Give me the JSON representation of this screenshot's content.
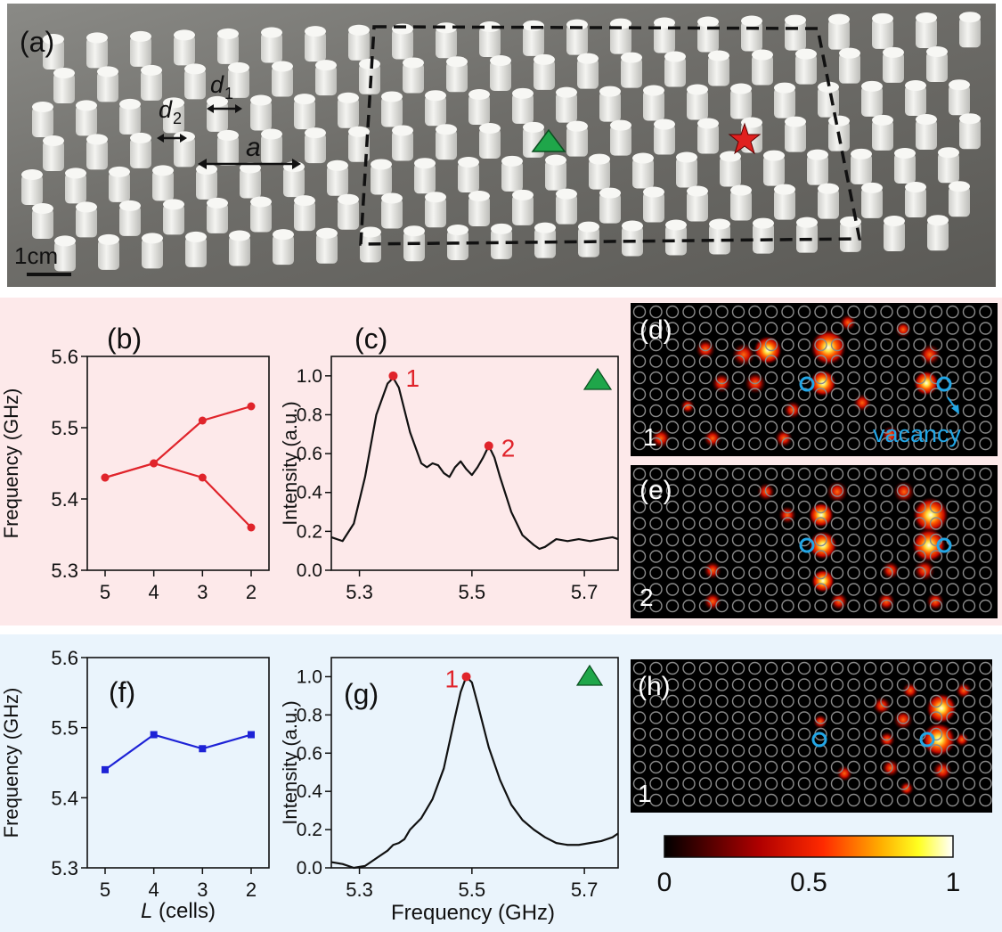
{
  "panels": {
    "a": {
      "label": "(a)",
      "annotations": {
        "d1_base": "d",
        "d1_sub": "1",
        "d2_base": "d",
        "d2_sub": "2",
        "a": "a"
      },
      "scale_bar": "1cm"
    },
    "b": {
      "label": "(b)"
    },
    "c": {
      "label": "(c)"
    },
    "d": {
      "label": "(d)",
      "mode": "1",
      "vacancy_label": "vacancy"
    },
    "e": {
      "label": "(e)",
      "mode": "2"
    },
    "f": {
      "label": "(f)"
    },
    "g": {
      "label": "(g)"
    },
    "h": {
      "label": "(h)",
      "mode": "1"
    }
  },
  "colors": {
    "top_background": "#fde9ea",
    "bottom_background": "#eaf4fc",
    "red_series": "#e0242b",
    "blue_series": "#1d22d6",
    "triangle": "#1fa64a",
    "star": "#e0201f",
    "vacancy": "#22a6e6"
  },
  "chart_data": [
    {
      "id": "b",
      "type": "line",
      "ylabel": "Frequency (GHz)",
      "xlabel": "",
      "categories": [
        "5",
        "4",
        "3",
        "2"
      ],
      "series": [
        {
          "values": [
            5.43,
            5.45,
            5.51,
            5.53
          ]
        },
        {
          "values": [
            5.43,
            5.45,
            5.43,
            5.36
          ]
        }
      ],
      "ylim": [
        5.3,
        5.6
      ],
      "yticks": [
        "5.3",
        "5.4",
        "5.5",
        "5.6"
      ]
    },
    {
      "id": "c",
      "type": "line",
      "ylabel": "Intensity (a.u.)",
      "xlabel": "",
      "xlim": [
        5.25,
        5.76
      ],
      "ylim": [
        0.0,
        1.1
      ],
      "xticks": [
        "5.3",
        "5.5",
        "5.7"
      ],
      "yticks": [
        "0.0",
        "0.2",
        "0.4",
        "0.6",
        "0.8",
        "1.0"
      ],
      "x": [
        5.25,
        5.27,
        5.29,
        5.31,
        5.33,
        5.35,
        5.36,
        5.37,
        5.39,
        5.41,
        5.42,
        5.43,
        5.44,
        5.45,
        5.46,
        5.47,
        5.48,
        5.49,
        5.5,
        5.51,
        5.52,
        5.53,
        5.54,
        5.55,
        5.57,
        5.59,
        5.61,
        5.62,
        5.63,
        5.65,
        5.67,
        5.69,
        5.71,
        5.73,
        5.75,
        5.76
      ],
      "y": [
        0.17,
        0.15,
        0.24,
        0.48,
        0.8,
        0.96,
        0.99,
        0.94,
        0.71,
        0.55,
        0.53,
        0.55,
        0.54,
        0.5,
        0.48,
        0.53,
        0.56,
        0.52,
        0.49,
        0.53,
        0.58,
        0.64,
        0.58,
        0.48,
        0.3,
        0.18,
        0.13,
        0.11,
        0.12,
        0.16,
        0.15,
        0.16,
        0.15,
        0.16,
        0.17,
        0.16
      ],
      "markers": [
        {
          "label": "1",
          "x": 5.36,
          "y": 1.0
        },
        {
          "label": "2",
          "x": 5.53,
          "y": 0.64
        }
      ]
    },
    {
      "id": "f",
      "type": "line",
      "ylabel": "Frequency (GHz)",
      "xlabel_base": "L",
      "xlabel_rest": " (cells)",
      "categories": [
        "5",
        "4",
        "3",
        "2"
      ],
      "series": [
        {
          "values": [
            5.44,
            5.49,
            5.47,
            5.49
          ]
        }
      ],
      "ylim": [
        5.3,
        5.6
      ],
      "yticks": [
        "5.3",
        "5.4",
        "5.5",
        "5.6"
      ]
    },
    {
      "id": "g",
      "type": "line",
      "ylabel": "Intensity (a.u.)",
      "xlabel": "Frequency (GHz)",
      "xlim": [
        5.25,
        5.76
      ],
      "ylim": [
        0.0,
        1.1
      ],
      "xticks": [
        "5.3",
        "5.5",
        "5.7"
      ],
      "yticks": [
        "0.0",
        "0.2",
        "0.4",
        "0.6",
        "0.8",
        "1.0"
      ],
      "x": [
        5.25,
        5.27,
        5.29,
        5.31,
        5.33,
        5.35,
        5.36,
        5.37,
        5.38,
        5.39,
        5.41,
        5.43,
        5.45,
        5.47,
        5.48,
        5.49,
        5.5,
        5.51,
        5.53,
        5.55,
        5.57,
        5.59,
        5.61,
        5.63,
        5.65,
        5.67,
        5.69,
        5.71,
        5.73,
        5.75,
        5.76
      ],
      "y": [
        0.03,
        0.02,
        0.0,
        0.01,
        0.05,
        0.09,
        0.12,
        0.13,
        0.15,
        0.2,
        0.26,
        0.36,
        0.52,
        0.79,
        0.92,
        1.0,
        0.97,
        0.86,
        0.63,
        0.46,
        0.33,
        0.25,
        0.2,
        0.16,
        0.13,
        0.12,
        0.12,
        0.13,
        0.14,
        0.16,
        0.18
      ],
      "markers": [
        {
          "label": "1",
          "x": 5.49,
          "y": 1.0
        }
      ]
    },
    {
      "id": "colorbar",
      "type": "heatmap",
      "ticks": [
        "0",
        "0.5",
        "1"
      ],
      "range": [
        0,
        1
      ]
    }
  ]
}
